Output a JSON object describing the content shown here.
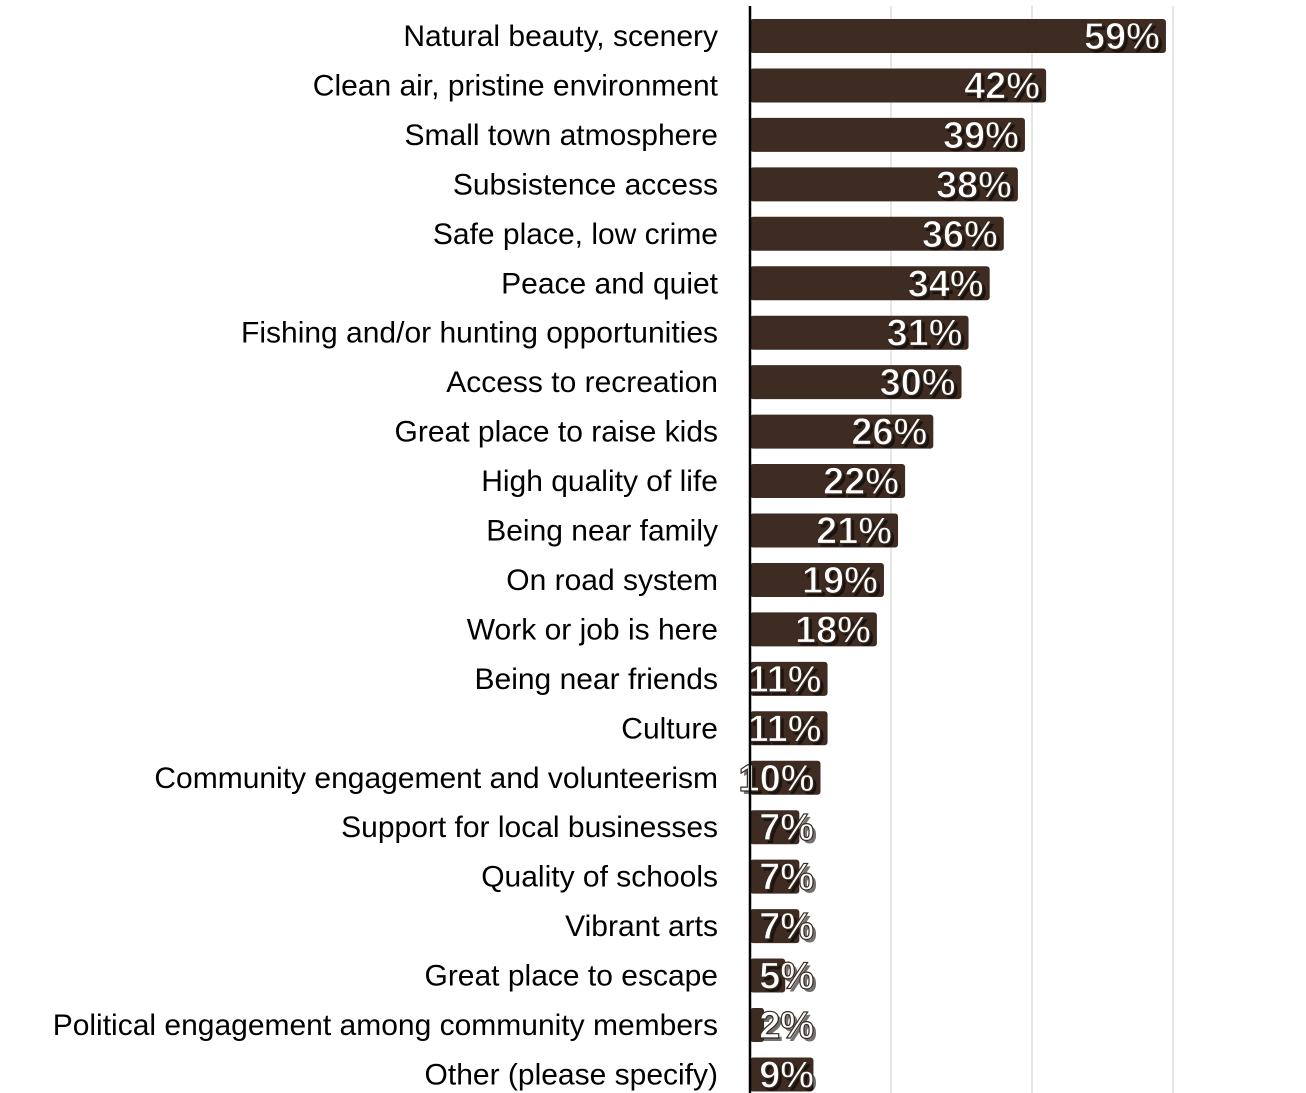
{
  "chart_data": {
    "type": "bar",
    "orientation": "horizontal",
    "title": "",
    "xlabel": "",
    "ylabel": "",
    "xlim": [
      0,
      60
    ],
    "grid": true,
    "bar_color": "#3e2b22",
    "categories": [
      "Natural beauty, scenery",
      "Clean air, pristine environment",
      "Small town atmosphere",
      "Subsistence access",
      "Safe place, low crime",
      "Peace and quiet",
      "Fishing and/or hunting opportunities",
      "Access to recreation",
      "Great place to raise kids",
      "High quality of life",
      "Being near family",
      "On road system",
      "Work or job is here",
      "Being near friends",
      "Culture",
      "Community engagement and volunteerism",
      "Support for local businesses",
      "Quality of schools",
      "Vibrant arts",
      "Great place to escape",
      "Political engagement among community members",
      "Other (please specify)"
    ],
    "values": [
      59,
      42,
      39,
      38,
      36,
      34,
      31,
      30,
      26,
      22,
      21,
      19,
      18,
      11,
      11,
      10,
      7,
      7,
      7,
      5,
      2,
      9
    ],
    "data_labels": [
      "59%",
      "42%",
      "39%",
      "38%",
      "36%",
      "34%",
      "31%",
      "30%",
      "26%",
      "22%",
      "21%",
      "19%",
      "18%",
      "11%",
      "11%",
      "10%",
      "7%",
      "7%",
      "7%",
      "5%",
      "2%",
      "9%"
    ]
  }
}
